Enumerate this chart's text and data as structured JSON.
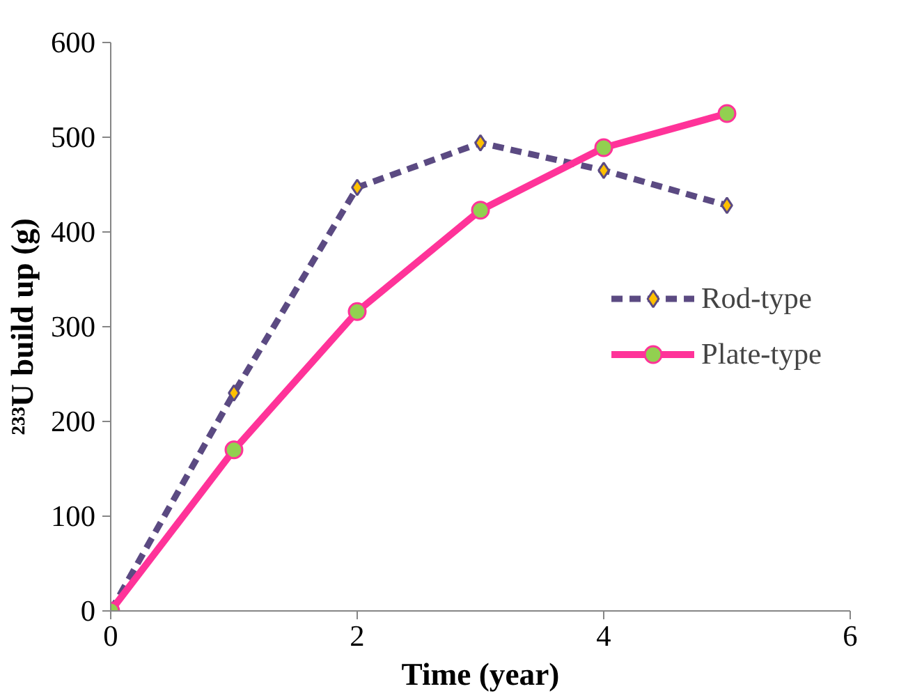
{
  "chart_data": {
    "type": "line",
    "xlabel": "Time (year)",
    "ylabel": "²³³U build up (g)",
    "x": [
      0,
      1,
      2,
      3,
      4,
      5
    ],
    "series": [
      {
        "name": "Rod-type",
        "color": "#5b4a82",
        "values": [
          0,
          230,
          447,
          494,
          465,
          428
        ],
        "marker": "diamond",
        "line_style": "dashed"
      },
      {
        "name": "Plate-type",
        "color": "#ff3399",
        "values": [
          0,
          170,
          316,
          423,
          489,
          525
        ],
        "marker": "circle",
        "line_style": "solid"
      }
    ],
    "xlim": [
      0,
      6
    ],
    "xticks": [
      0,
      2,
      4,
      6
    ],
    "ylim": [
      0,
      600
    ],
    "yticks": [
      0,
      100,
      200,
      300,
      400,
      500,
      600
    ],
    "grid": false,
    "legend": "right"
  }
}
